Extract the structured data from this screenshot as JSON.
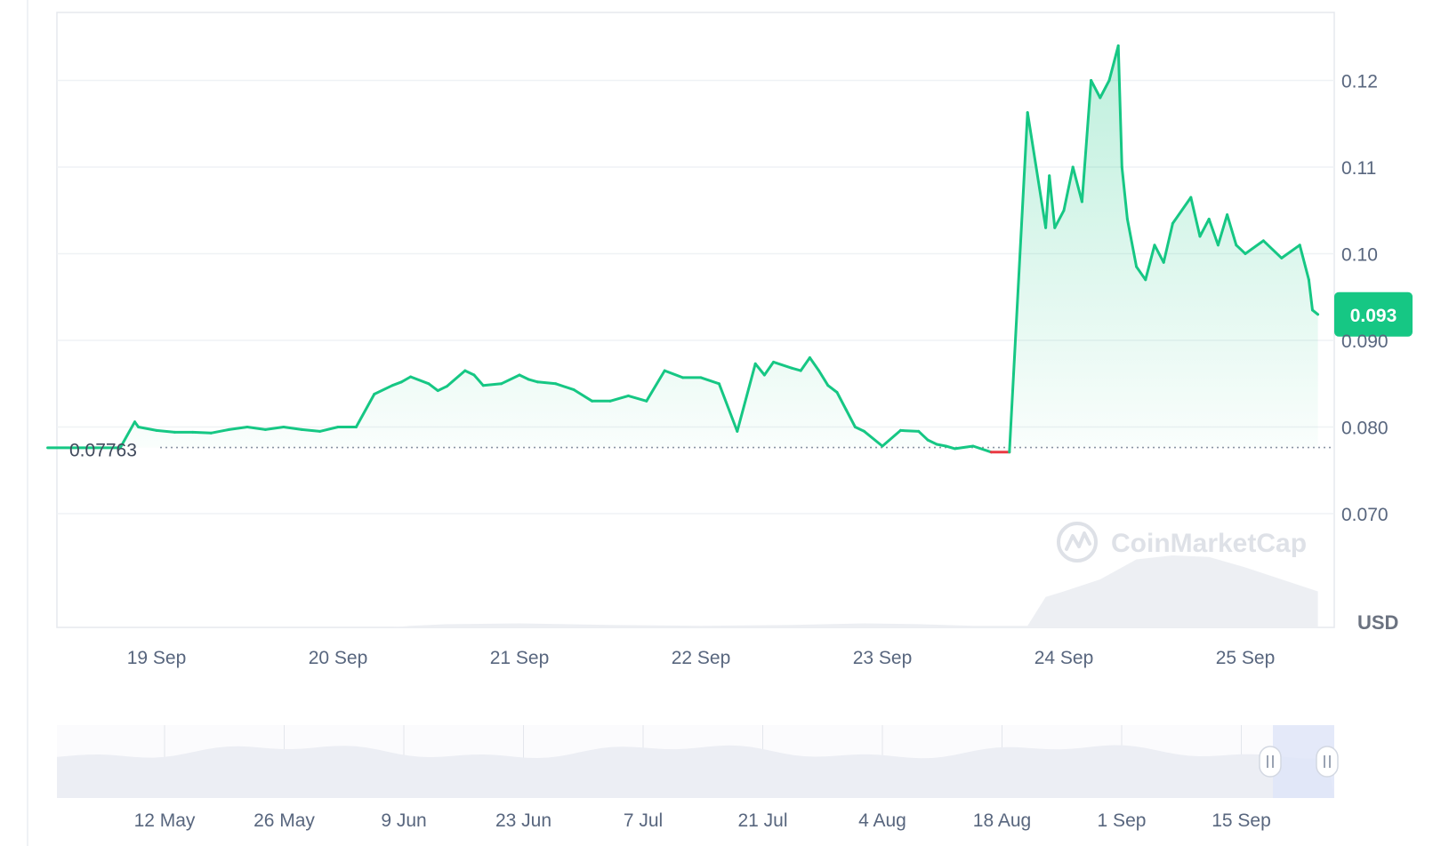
{
  "unit_label": "USD",
  "watermark": "CoinMarketCap",
  "colors": {
    "up": "#16c784",
    "down": "#ea3943",
    "grid": "#eff2f5",
    "volume": "#ebedf2",
    "navigator_fill": "#eceef4",
    "navigator_selection": "#dfe5f8"
  },
  "chart_data": {
    "type": "line",
    "price_axis": {
      "ticks": [
        "0.070",
        "0.080",
        "0.090",
        "0.10",
        "0.11",
        "0.12"
      ]
    },
    "time_axis": {
      "ticks": [
        "19 Sep",
        "20 Sep",
        "21 Sep",
        "22 Sep",
        "23 Sep",
        "24 Sep",
        "25 Sep"
      ]
    },
    "baseline_value": 0.07763,
    "baseline_label": "0.07763",
    "current_value": 0.093,
    "current_label": "0.093",
    "grid": true,
    "price_x": [
      18.4,
      18.8,
      18.88,
      18.9,
      19.0,
      19.1,
      19.2,
      19.3,
      19.4,
      19.5,
      19.6,
      19.7,
      19.8,
      19.9,
      20.0,
      20.1,
      20.2,
      20.3,
      20.35,
      20.4,
      20.5,
      20.55,
      20.6,
      20.7,
      20.75,
      20.8,
      20.9,
      21.0,
      21.05,
      21.1,
      21.2,
      21.3,
      21.4,
      21.5,
      21.6,
      21.7,
      21.8,
      21.9,
      22.0,
      22.1,
      22.2,
      22.3,
      22.35,
      22.4,
      22.5,
      22.55,
      22.6,
      22.65,
      22.7,
      22.75,
      22.8,
      22.85,
      22.9,
      23.0,
      23.1,
      23.2,
      23.25,
      23.3,
      23.35,
      23.4,
      23.5,
      23.6,
      23.7,
      23.8,
      23.9,
      23.92,
      23.95,
      24.0,
      24.05,
      24.1,
      24.15,
      24.2,
      24.25,
      24.3,
      24.32,
      24.35,
      24.4,
      24.45,
      24.5,
      24.55,
      24.6,
      24.7,
      24.75,
      24.8,
      24.85,
      24.9,
      24.95,
      25.0,
      25.1,
      25.2,
      25.3,
      25.35,
      25.37,
      25.4
    ],
    "price_y": [
      0.0776,
      0.0776,
      0.0806,
      0.08,
      0.0796,
      0.0794,
      0.0794,
      0.0793,
      0.0797,
      0.08,
      0.0797,
      0.08,
      0.0797,
      0.0795,
      0.08,
      0.08,
      0.0838,
      0.0848,
      0.0852,
      0.0858,
      0.085,
      0.0842,
      0.0847,
      0.0865,
      0.086,
      0.0848,
      0.085,
      0.086,
      0.0855,
      0.0852,
      0.085,
      0.0843,
      0.083,
      0.083,
      0.0836,
      0.083,
      0.0865,
      0.0857,
      0.0857,
      0.085,
      0.0795,
      0.0873,
      0.086,
      0.0875,
      0.0868,
      0.0865,
      0.088,
      0.0865,
      0.0848,
      0.084,
      0.082,
      0.08,
      0.0795,
      0.0778,
      0.0796,
      0.0795,
      0.0785,
      0.078,
      0.0778,
      0.0775,
      0.0778,
      0.0771,
      0.0771,
      0.1163,
      0.103,
      0.109,
      0.103,
      0.105,
      0.11,
      0.106,
      0.12,
      0.118,
      0.12,
      0.124,
      0.11,
      0.104,
      0.0985,
      0.097,
      0.101,
      0.099,
      0.1035,
      0.1065,
      0.102,
      0.104,
      0.101,
      0.1045,
      0.101,
      0.1,
      0.1015,
      0.0995,
      0.101,
      0.097,
      0.0935,
      0.093
    ],
    "volume_x": [
      18.4,
      20.3,
      20.4,
      20.6,
      21.0,
      21.5,
      22.0,
      22.5,
      22.9,
      23.2,
      23.5,
      23.8,
      23.85,
      23.9,
      24.0,
      24.2,
      24.4,
      24.6,
      24.8,
      25.0,
      25.2,
      25.4
    ],
    "volume_y": [
      0,
      0,
      2,
      4,
      5,
      3,
      2,
      3,
      5,
      4,
      2,
      2,
      20,
      38,
      45,
      60,
      85,
      90,
      88,
      75,
      60,
      45
    ],
    "navigator_x_ticks": [
      "12 May",
      "26 May",
      "9 Jun",
      "23 Jun",
      "7 Jul",
      "21 Jul",
      "4 Aug",
      "18 Aug",
      "1 Sep",
      "15 Sep"
    ],
    "navigator_selection": [
      "18 Sep",
      "25 Sep"
    ]
  }
}
